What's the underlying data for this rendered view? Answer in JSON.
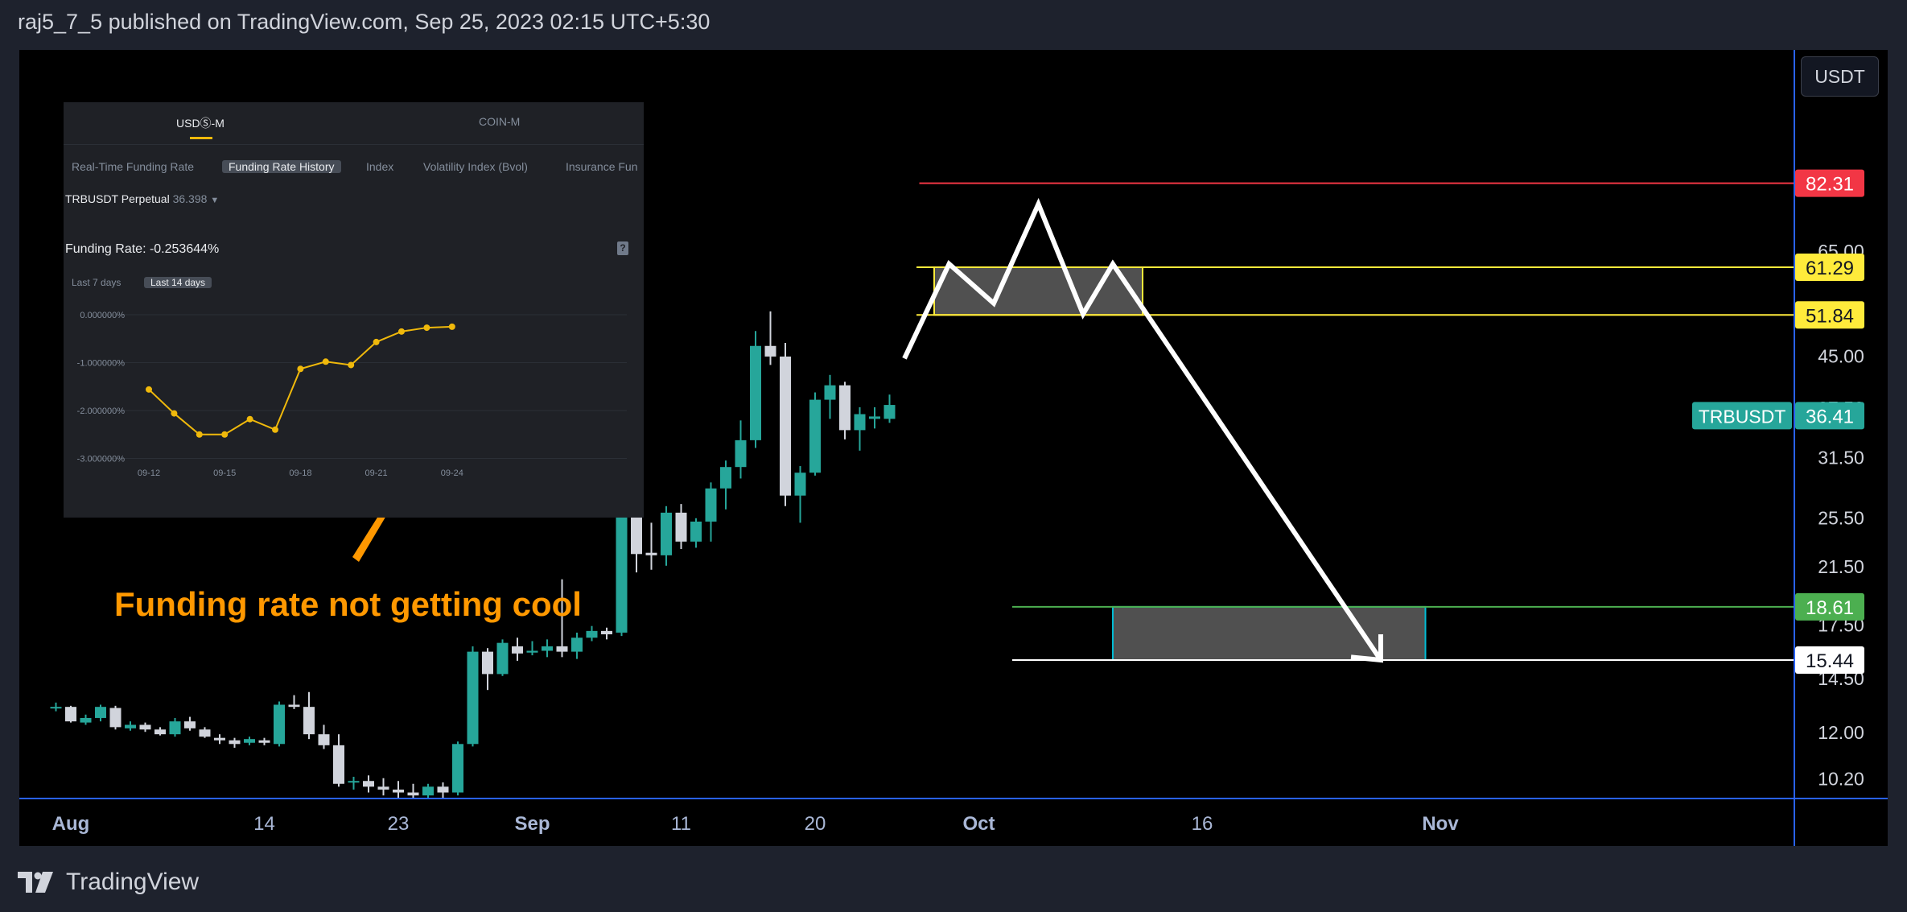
{
  "header": {
    "text": "raj5_7_5 published on TradingView.com, Sep 25, 2023 02:15 UTC+5:30"
  },
  "footer": {
    "label": "TradingView",
    "logo": "tradingview-logo"
  },
  "currency_button": {
    "label": "USDT"
  },
  "colors": {
    "up": "#26a69a",
    "down": "#d1d4dc",
    "red": "#f23645",
    "yellow": "#ffeb3b",
    "green": "#4caf50",
    "cyan": "#00bcd4",
    "orange": "#ff9800",
    "white": "#ffffff",
    "axis": "#2962ff",
    "funding_line": "#f0b90b"
  },
  "chart_data": [
    {
      "type": "candlestick",
      "symbol": "TRBUSDT",
      "currency": "USDT",
      "x_axis_labels": [
        {
          "label": "Aug",
          "date": "2023-08-01",
          "bold": true
        },
        {
          "label": "14",
          "date": "2023-08-14",
          "bold": false
        },
        {
          "label": "23",
          "date": "2023-08-23",
          "bold": false
        },
        {
          "label": "Sep",
          "date": "2023-09-01",
          "bold": true
        },
        {
          "label": "11",
          "date": "2023-09-11",
          "bold": false
        },
        {
          "label": "20",
          "date": "2023-09-20",
          "bold": false
        },
        {
          "label": "Oct",
          "date": "2023-10-01",
          "bold": true
        },
        {
          "label": "16",
          "date": "2023-10-16",
          "bold": false
        },
        {
          "label": "Nov",
          "date": "2023-11-01",
          "bold": true
        }
      ],
      "y_axis": {
        "scale": "log",
        "tick_labels": [
          "65.00",
          "45.00",
          "37.50",
          "31.50",
          "25.50",
          "21.50",
          "17.50",
          "14.50",
          "12.00",
          "10.20"
        ]
      },
      "candles": [
        {
          "date": "2023-07-31",
          "open": 13.05,
          "high": 13.3,
          "low": 12.9,
          "close": 13.1
        },
        {
          "date": "2023-08-01",
          "open": 13.1,
          "high": 13.15,
          "low": 12.4,
          "close": 12.45
        },
        {
          "date": "2023-08-02",
          "open": 12.4,
          "high": 12.75,
          "low": 12.3,
          "close": 12.6
        },
        {
          "date": "2023-08-03",
          "open": 12.6,
          "high": 13.2,
          "low": 12.45,
          "close": 13.1
        },
        {
          "date": "2023-08-04",
          "open": 13.05,
          "high": 13.15,
          "low": 12.1,
          "close": 12.2
        },
        {
          "date": "2023-08-05",
          "open": 12.15,
          "high": 12.45,
          "low": 12.05,
          "close": 12.3
        },
        {
          "date": "2023-08-06",
          "open": 12.3,
          "high": 12.4,
          "low": 12.0,
          "close": 12.1
        },
        {
          "date": "2023-08-07",
          "open": 12.1,
          "high": 12.2,
          "low": 11.85,
          "close": 11.9
        },
        {
          "date": "2023-08-08",
          "open": 11.9,
          "high": 12.6,
          "low": 11.8,
          "close": 12.45
        },
        {
          "date": "2023-08-09",
          "open": 12.45,
          "high": 12.65,
          "low": 12.05,
          "close": 12.15
        },
        {
          "date": "2023-08-10",
          "open": 12.1,
          "high": 12.2,
          "low": 11.75,
          "close": 11.8
        },
        {
          "date": "2023-08-11",
          "open": 11.75,
          "high": 11.9,
          "low": 11.5,
          "close": 11.65
        },
        {
          "date": "2023-08-12",
          "open": 11.65,
          "high": 11.75,
          "low": 11.35,
          "close": 11.5
        },
        {
          "date": "2023-08-13",
          "open": 11.55,
          "high": 11.8,
          "low": 11.45,
          "close": 11.7
        },
        {
          "date": "2023-08-14",
          "open": 11.65,
          "high": 11.75,
          "low": 11.45,
          "close": 11.55
        },
        {
          "date": "2023-08-15",
          "open": 11.5,
          "high": 13.35,
          "low": 11.4,
          "close": 13.2
        },
        {
          "date": "2023-08-16",
          "open": 13.2,
          "high": 13.65,
          "low": 13.0,
          "close": 13.1
        },
        {
          "date": "2023-08-17",
          "open": 13.1,
          "high": 13.8,
          "low": 11.7,
          "close": 11.9
        },
        {
          "date": "2023-08-18",
          "open": 11.9,
          "high": 12.3,
          "low": 11.3,
          "close": 11.45
        },
        {
          "date": "2023-08-19",
          "open": 11.45,
          "high": 11.9,
          "low": 9.9,
          "close": 10.0
        },
        {
          "date": "2023-08-20",
          "open": 10.1,
          "high": 10.25,
          "low": 9.8,
          "close": 10.1
        },
        {
          "date": "2023-08-21",
          "open": 10.1,
          "high": 10.3,
          "low": 9.7,
          "close": 9.9
        },
        {
          "date": "2023-08-22",
          "open": 9.9,
          "high": 10.2,
          "low": 9.6,
          "close": 9.8
        },
        {
          "date": "2023-08-23",
          "open": 9.8,
          "high": 10.1,
          "low": 9.5,
          "close": 9.7
        },
        {
          "date": "2023-08-24",
          "open": 9.7,
          "high": 10.0,
          "low": 9.4,
          "close": 9.6
        },
        {
          "date": "2023-08-25",
          "open": 9.6,
          "high": 10.0,
          "low": 9.4,
          "close": 9.9
        },
        {
          "date": "2023-08-26",
          "open": 9.9,
          "high": 10.05,
          "low": 9.5,
          "close": 9.7
        },
        {
          "date": "2023-08-27",
          "open": 9.7,
          "high": 11.6,
          "low": 9.6,
          "close": 11.5
        },
        {
          "date": "2023-08-28",
          "open": 11.5,
          "high": 16.2,
          "low": 11.4,
          "close": 15.9
        },
        {
          "date": "2023-08-29",
          "open": 15.9,
          "high": 16.1,
          "low": 13.9,
          "close": 14.7
        },
        {
          "date": "2023-08-30",
          "open": 14.7,
          "high": 16.6,
          "low": 14.6,
          "close": 16.4
        },
        {
          "date": "2023-08-31",
          "open": 16.2,
          "high": 16.7,
          "low": 15.4,
          "close": 15.8
        },
        {
          "date": "2023-09-01",
          "open": 15.85,
          "high": 16.5,
          "low": 15.7,
          "close": 15.95
        },
        {
          "date": "2023-09-02",
          "open": 15.95,
          "high": 16.6,
          "low": 15.6,
          "close": 16.2
        },
        {
          "date": "2023-09-03",
          "open": 16.2,
          "high": 20.5,
          "low": 15.6,
          "close": 15.9
        },
        {
          "date": "2023-09-04",
          "open": 15.9,
          "high": 17.0,
          "low": 15.5,
          "close": 16.7
        },
        {
          "date": "2023-09-05",
          "open": 16.7,
          "high": 17.4,
          "low": 16.5,
          "close": 17.1
        },
        {
          "date": "2023-09-06",
          "open": 17.1,
          "high": 17.3,
          "low": 16.6,
          "close": 16.9
        },
        {
          "date": "2023-09-07",
          "open": 17.0,
          "high": 26.0,
          "low": 16.8,
          "close": 25.7
        },
        {
          "date": "2023-09-08",
          "open": 25.7,
          "high": 28.0,
          "low": 21.0,
          "close": 22.4
        },
        {
          "date": "2023-09-09",
          "open": 22.5,
          "high": 25.0,
          "low": 21.2,
          "close": 22.3
        },
        {
          "date": "2023-09-10",
          "open": 22.3,
          "high": 26.5,
          "low": 21.5,
          "close": 25.9
        },
        {
          "date": "2023-09-11",
          "open": 25.9,
          "high": 26.7,
          "low": 22.8,
          "close": 23.4
        },
        {
          "date": "2023-09-12",
          "open": 23.4,
          "high": 25.4,
          "low": 22.9,
          "close": 25.1
        },
        {
          "date": "2023-09-13",
          "open": 25.1,
          "high": 28.8,
          "low": 23.4,
          "close": 28.2
        },
        {
          "date": "2023-09-14",
          "open": 28.2,
          "high": 31.1,
          "low": 26.2,
          "close": 30.4
        },
        {
          "date": "2023-09-15",
          "open": 30.4,
          "high": 35.8,
          "low": 29.2,
          "close": 33.4
        },
        {
          "date": "2023-09-16",
          "open": 33.4,
          "high": 49.0,
          "low": 32.5,
          "close": 46.5
        },
        {
          "date": "2023-09-17",
          "open": 46.5,
          "high": 52.5,
          "low": 43.5,
          "close": 44.8
        },
        {
          "date": "2023-09-18",
          "open": 44.8,
          "high": 47.0,
          "low": 26.5,
          "close": 27.5
        },
        {
          "date": "2023-09-19",
          "open": 27.5,
          "high": 30.5,
          "low": 25.0,
          "close": 29.8
        },
        {
          "date": "2023-09-20",
          "open": 29.8,
          "high": 39.5,
          "low": 29.5,
          "close": 38.5
        },
        {
          "date": "2023-09-21",
          "open": 38.5,
          "high": 42.0,
          "low": 36.0,
          "close": 40.5
        },
        {
          "date": "2023-09-22",
          "open": 40.5,
          "high": 41.0,
          "low": 33.5,
          "close": 34.6
        },
        {
          "date": "2023-09-23",
          "open": 34.6,
          "high": 37.5,
          "low": 32.2,
          "close": 36.6
        },
        {
          "date": "2023-09-24",
          "open": 36.0,
          "high": 37.5,
          "low": 34.8,
          "close": 36.3
        },
        {
          "date": "2023-09-25",
          "open": 36.0,
          "high": 39.2,
          "low": 35.5,
          "close": 37.8
        }
      ],
      "price_labels": [
        {
          "value": "82.31",
          "price": 82.31,
          "bg": "#f23645",
          "fg": "#ffffff"
        },
        {
          "value": "61.29",
          "price": 61.29,
          "bg": "#ffeb3b",
          "fg": "#131722"
        },
        {
          "value": "51.84",
          "price": 51.84,
          "bg": "#ffeb3b",
          "fg": "#131722"
        },
        {
          "value": "36.41",
          "price": 36.41,
          "bg": "#26a69a",
          "fg": "#ffffff"
        },
        {
          "value": "18.61",
          "price": 18.61,
          "bg": "#4caf50",
          "fg": "#ffffff"
        },
        {
          "value": "15.44",
          "price": 15.44,
          "bg": "#ffffff",
          "fg": "#131722"
        }
      ],
      "symbol_tag": "TRBUSDT",
      "drawings": {
        "red_line": {
          "price": 82.31,
          "from": "2023-09-27"
        },
        "resistance_zone": {
          "top": 61.29,
          "bottom": 51.84,
          "from": "2023-09-28",
          "to": "2023-10-12"
        },
        "support_zone": {
          "top": 18.61,
          "bottom": 15.44,
          "from": "2023-10-10",
          "to": "2023-10-31"
        },
        "projection_path": [
          {
            "date": "2023-09-26",
            "price": 44.5
          },
          {
            "date": "2023-09-29",
            "price": 62.0
          },
          {
            "date": "2023-10-02",
            "price": 54.0
          },
          {
            "date": "2023-10-05",
            "price": 76.5
          },
          {
            "date": "2023-10-08",
            "price": 52.0
          },
          {
            "date": "2023-10-10",
            "price": 62.0
          },
          {
            "date": "2023-10-28",
            "price": 15.44
          }
        ],
        "arrow_head": [
          {
            "date": "2023-10-26",
            "price": 15.6
          },
          {
            "date": "2023-10-28",
            "price": 15.44
          },
          {
            "date": "2023-10-28",
            "price": 16.9
          }
        ]
      },
      "annotation": {
        "text": "Funding rate not getting cool",
        "color": "#ff9800"
      }
    },
    {
      "type": "line",
      "title": "Funding Rate: -0.253644%",
      "tabs": [
        "USDⓈ-M",
        "COIN-M"
      ],
      "nav": [
        "Real-Time Funding Rate",
        "Funding Rate History",
        "Index",
        "Volatility Index (Bvol)",
        "Insurance Fun"
      ],
      "symbol": "TRBUSDT Perpetual",
      "symbol_value": "36.398",
      "ranges": [
        "Last 7 days",
        "Last 14 days"
      ],
      "ylim": [
        -3.0,
        0.0
      ],
      "y_tick_labels": [
        "0.000000%",
        "-1.000000%",
        "-2.000000%",
        "-3.000000%"
      ],
      "x_tick_labels": [
        "09-12",
        "09-15",
        "09-18",
        "09-21",
        "09-24"
      ],
      "x": [
        "09-12",
        "09-13",
        "09-14",
        "09-15",
        "09-16",
        "09-17",
        "09-18",
        "09-19",
        "09-20",
        "09-21",
        "09-22",
        "09-23",
        "09-24"
      ],
      "values": [
        -1.56,
        -2.06,
        -2.5,
        -2.5,
        -2.18,
        -2.4,
        -1.13,
        -0.98,
        -1.05,
        -0.57,
        -0.35,
        -0.27,
        -0.25
      ]
    }
  ]
}
